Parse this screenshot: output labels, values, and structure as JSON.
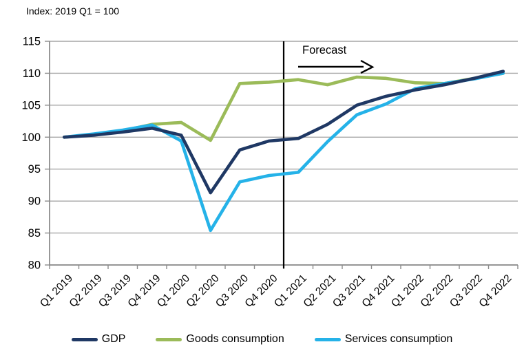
{
  "note": {
    "text": "Index: 2019 Q1 = 100"
  },
  "chart_data": {
    "type": "line",
    "title": "",
    "xlabel": "",
    "ylabel": "",
    "categories": [
      "Q1 2019",
      "Q2 2019",
      "Q3 2019",
      "Q4 2019",
      "Q1 2020",
      "Q2 2020",
      "Q3 2020",
      "Q4 2020",
      "Q1 2021",
      "Q2 2021",
      "Q3 2021",
      "Q4 2021",
      "Q1 2022",
      "Q2 2022",
      "Q3 2022",
      "Q4 2022"
    ],
    "series": [
      {
        "name": "GDP",
        "color": "#1F3864",
        "values": [
          100,
          100.3,
          100.8,
          101.4,
          100.3,
          91.3,
          98.0,
          99.4,
          99.8,
          102.0,
          105.0,
          106.4,
          107.4,
          108.2,
          109.2,
          110.3
        ]
      },
      {
        "name": "Goods consumption",
        "color": "#9BBB59",
        "values": [
          100,
          100.4,
          101.0,
          102.0,
          102.3,
          99.5,
          108.4,
          108.6,
          109.0,
          108.2,
          109.4,
          109.2,
          108.5,
          108.4,
          109.2,
          110.0
        ]
      },
      {
        "name": "Services consumption",
        "color": "#25B2E8",
        "values": [
          100,
          100.5,
          101.1,
          101.9,
          99.4,
          85.4,
          93.0,
          94.0,
          94.5,
          99.3,
          103.5,
          105.2,
          107.6,
          108.4,
          109.1,
          110.0
        ]
      }
    ],
    "ylim": [
      80,
      115
    ],
    "ytick_step": 5,
    "grid": "horizontal",
    "legend_position": "bottom",
    "annotations": {
      "forecast_label": "Forecast",
      "forecast_boundary_after_category": "Q4 2020"
    }
  },
  "colors": {
    "gridline": "#A6A6A6",
    "axis": "#8C8C8C",
    "text": "#000000",
    "forecast_line": "#000000"
  }
}
